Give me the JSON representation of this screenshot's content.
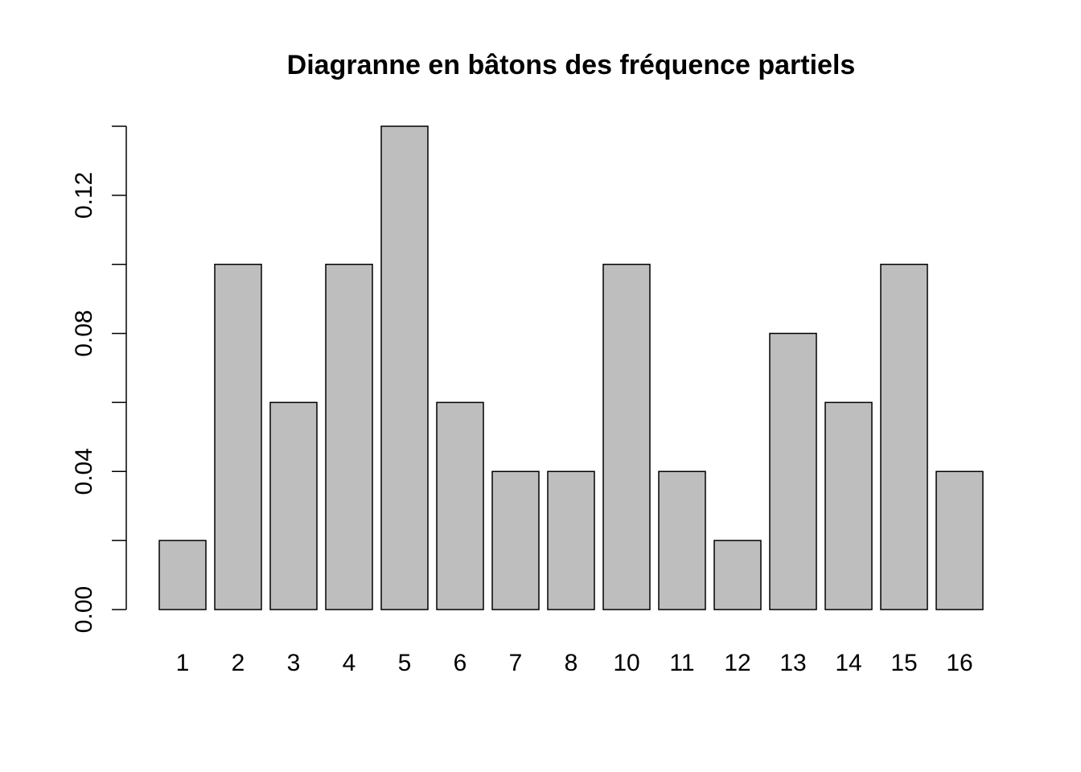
{
  "chart_data": {
    "type": "bar",
    "title": "Diagranne en bâtons des fréquence partiels",
    "xlabel": "",
    "ylabel": "",
    "categories": [
      "1",
      "2",
      "3",
      "4",
      "5",
      "6",
      "7",
      "8",
      "10",
      "11",
      "12",
      "13",
      "14",
      "15",
      "16"
    ],
    "values": [
      0.02,
      0.1,
      0.06,
      0.1,
      0.14,
      0.06,
      0.04,
      0.04,
      0.1,
      0.04,
      0.02,
      0.08,
      0.06,
      0.1,
      0.04
    ],
    "ylim": [
      0,
      0.14
    ],
    "y_ticks": [
      0.0,
      0.02,
      0.04,
      0.06,
      0.08,
      0.1,
      0.12,
      0.14
    ],
    "y_tick_labels": [
      "0.00",
      "",
      "0.04",
      "",
      "0.08",
      "",
      "0.12",
      ""
    ],
    "grid": false,
    "legend": "none",
    "colors": {
      "bar_fill": "#bebebe",
      "bar_stroke": "#000000",
      "axis": "#000000",
      "background": "#ffffff"
    }
  }
}
